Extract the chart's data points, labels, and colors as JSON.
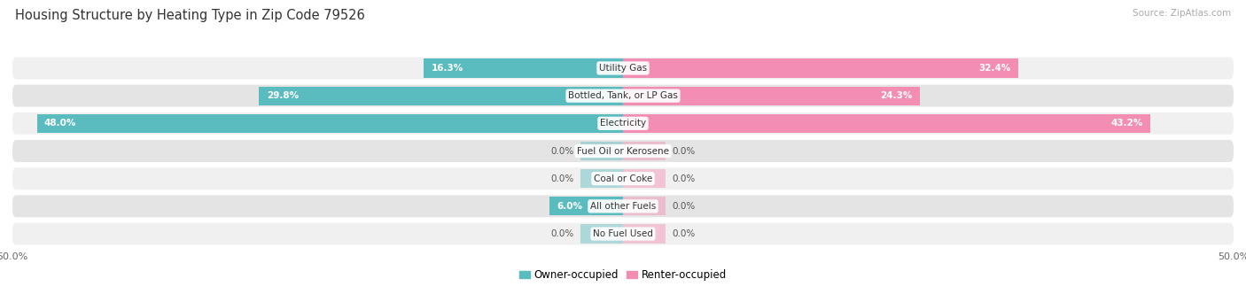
{
  "title": "Housing Structure by Heating Type in Zip Code 79526",
  "source": "Source: ZipAtlas.com",
  "categories": [
    "Utility Gas",
    "Bottled, Tank, or LP Gas",
    "Electricity",
    "Fuel Oil or Kerosene",
    "Coal or Coke",
    "All other Fuels",
    "No Fuel Used"
  ],
  "owner_values": [
    16.3,
    29.8,
    48.0,
    0.0,
    0.0,
    6.0,
    0.0
  ],
  "renter_values": [
    32.4,
    24.3,
    43.2,
    0.0,
    0.0,
    0.0,
    0.0
  ],
  "owner_color": "#5bbcbf",
  "renter_color": "#f48db4",
  "row_bg_light": "#f0f0f0",
  "row_bg_dark": "#e4e4e4",
  "axis_limit": 50.0,
  "title_fontsize": 10.5,
  "source_fontsize": 7.5,
  "bar_label_fontsize": 7.5,
  "cat_label_fontsize": 7.5,
  "legend_fontsize": 8.5,
  "axis_label_fontsize": 8,
  "stub_size": 3.5,
  "background_color": "#ffffff"
}
